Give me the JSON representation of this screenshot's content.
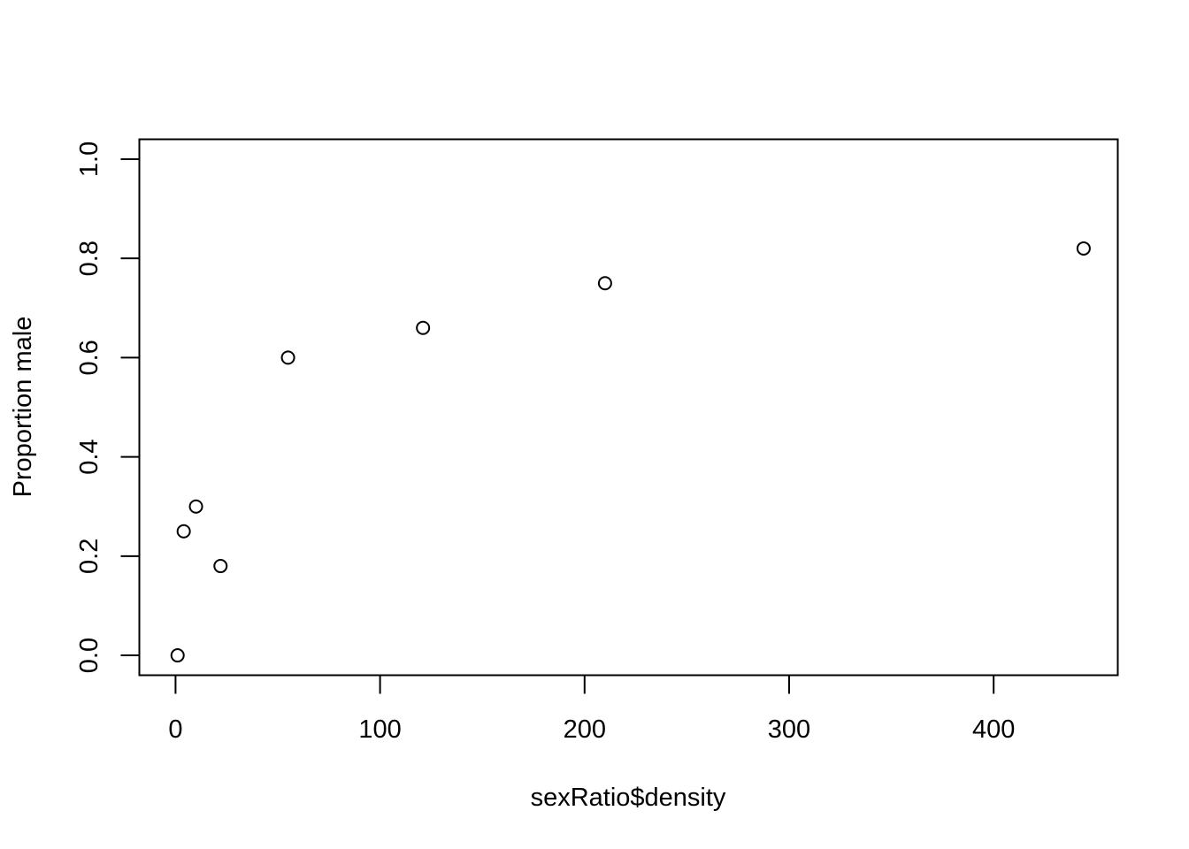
{
  "chart_data": {
    "type": "scatter",
    "title": "",
    "xlabel": "sexRatio$density",
    "ylabel": "Proportion male",
    "xlim": [
      -17.7,
      460.7
    ],
    "ylim": [
      -0.04,
      1.04
    ],
    "x_ticks": [
      0,
      100,
      200,
      300,
      400
    ],
    "x_tick_labels": [
      "0",
      "100",
      "200",
      "300",
      "400"
    ],
    "y_ticks": [
      0.0,
      0.2,
      0.4,
      0.6,
      0.8,
      1.0
    ],
    "y_tick_labels": [
      "0.0",
      "0.2",
      "0.4",
      "0.6",
      "0.8",
      "1.0"
    ],
    "grid": false,
    "legend": "none",
    "marker": "open-circle",
    "color": "#000000",
    "points": [
      {
        "x": 1,
        "y": 0.0
      },
      {
        "x": 4,
        "y": 0.25
      },
      {
        "x": 10,
        "y": 0.3
      },
      {
        "x": 22,
        "y": 0.18
      },
      {
        "x": 55,
        "y": 0.6
      },
      {
        "x": 121,
        "y": 0.66
      },
      {
        "x": 210,
        "y": 0.75
      },
      {
        "x": 444,
        "y": 0.82
      }
    ]
  }
}
